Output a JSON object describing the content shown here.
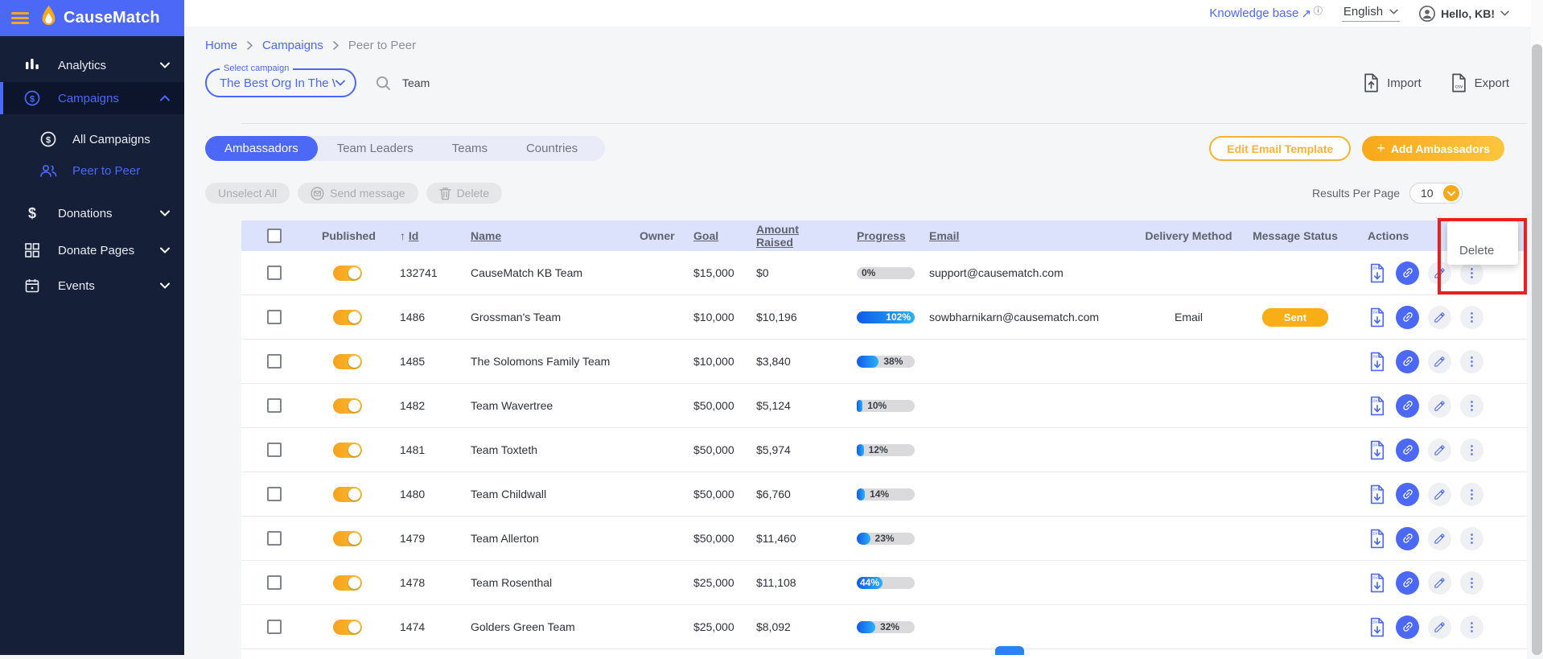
{
  "brand": {
    "name": "CauseMatch"
  },
  "topbar": {
    "knowledge_base": "Knowledge base",
    "external_arrow": "↗",
    "info_glyph": "ⓘ",
    "language": "English",
    "greeting": "Hello, KB!"
  },
  "sidebar": {
    "items": [
      {
        "label": "Analytics"
      },
      {
        "label": "Campaigns"
      },
      {
        "label": "All Campaigns"
      },
      {
        "label": "Peer to Peer"
      },
      {
        "label": "Donations"
      },
      {
        "label": "Donate Pages"
      },
      {
        "label": "Events"
      }
    ]
  },
  "breadcrumb": {
    "items": [
      "Home",
      "Campaigns",
      "Peer to Peer"
    ]
  },
  "filters": {
    "select_label": "Select campaign",
    "select_value": "The Best Org In The W...",
    "search_value": "Team"
  },
  "io": {
    "import_label": "Import",
    "export_label": "Export"
  },
  "tabs": {
    "items": [
      "Ambassadors",
      "Team Leaders",
      "Teams",
      "Countries"
    ],
    "active": "Ambassadors"
  },
  "header_actions": {
    "edit_email_template": "Edit Email Template",
    "plus": "+",
    "add_ambassadors": "Add Ambassadors"
  },
  "bulk_actions": {
    "unselect_all": "Unselect All",
    "send_message": "Send message",
    "delete": "Delete"
  },
  "pagination": {
    "results_per_page_label": "Results Per Page",
    "value": "10"
  },
  "table": {
    "columns": [
      {
        "label": "Published",
        "underline": false
      },
      {
        "label": "Id",
        "underline": true,
        "sort": "↑"
      },
      {
        "label": "Name",
        "underline": true
      },
      {
        "label": "Owner",
        "underline": false
      },
      {
        "label": "Goal",
        "underline": true
      },
      {
        "label": "Amount Raised",
        "underline": true
      },
      {
        "label": "Progress",
        "underline": true
      },
      {
        "label": "Email",
        "underline": true
      },
      {
        "label": "Delivery Method",
        "underline": false
      },
      {
        "label": "Message Status",
        "underline": false
      },
      {
        "label": "Actions",
        "underline": false
      }
    ],
    "rows": [
      {
        "published": true,
        "id": "132741",
        "name": "CauseMatch KB Team",
        "owner": "",
        "goal": "$15,000",
        "amount_raised": "$0",
        "progress": {
          "pct": 0,
          "label": "0%",
          "label_pos": "track"
        },
        "email": "support@causematch.com",
        "delivery_method": "",
        "message_status": ""
      },
      {
        "published": true,
        "id": "1486",
        "name": "Grossman's Team",
        "owner": "",
        "goal": "$10,000",
        "amount_raised": "$10,196",
        "progress": {
          "pct": 102,
          "label": "102%",
          "label_pos": "right"
        },
        "email": "sowbharnikarn@causematch.com",
        "delivery_method": "Email",
        "message_status": "Sent"
      },
      {
        "published": true,
        "id": "1485",
        "name": "The Solomons Family Team",
        "owner": "",
        "goal": "$10,000",
        "amount_raised": "$3,840",
        "progress": {
          "pct": 38,
          "label": "38%",
          "label_pos": "after"
        },
        "email": "",
        "delivery_method": "",
        "message_status": ""
      },
      {
        "published": true,
        "id": "1482",
        "name": "Team Wavertree",
        "owner": "",
        "goal": "$50,000",
        "amount_raised": "$5,124",
        "progress": {
          "pct": 10,
          "label": "10%",
          "label_pos": "after"
        },
        "email": "",
        "delivery_method": "",
        "message_status": ""
      },
      {
        "published": true,
        "id": "1481",
        "name": "Team Toxteth",
        "owner": "",
        "goal": "$50,000",
        "amount_raised": "$5,974",
        "progress": {
          "pct": 12,
          "label": "12%",
          "label_pos": "after"
        },
        "email": "",
        "delivery_method": "",
        "message_status": ""
      },
      {
        "published": true,
        "id": "1480",
        "name": "Team Childwall",
        "owner": "",
        "goal": "$50,000",
        "amount_raised": "$6,760",
        "progress": {
          "pct": 14,
          "label": "14%",
          "label_pos": "after"
        },
        "email": "",
        "delivery_method": "",
        "message_status": ""
      },
      {
        "published": true,
        "id": "1479",
        "name": "Team Allerton",
        "owner": "",
        "goal": "$50,000",
        "amount_raised": "$11,460",
        "progress": {
          "pct": 23,
          "label": "23%",
          "label_pos": "after"
        },
        "email": "",
        "delivery_method": "",
        "message_status": ""
      },
      {
        "published": true,
        "id": "1478",
        "name": "Team Rosenthal",
        "owner": "",
        "goal": "$25,000",
        "amount_raised": "$11,108",
        "progress": {
          "pct": 44,
          "label": "44%",
          "label_pos": "left"
        },
        "email": "",
        "delivery_method": "",
        "message_status": ""
      },
      {
        "published": true,
        "id": "1474",
        "name": "Golders Green Team",
        "owner": "",
        "goal": "$25,000",
        "amount_raised": "$8,092",
        "progress": {
          "pct": 32,
          "label": "32%",
          "label_pos": "after"
        },
        "email": "",
        "delivery_method": "",
        "message_status": ""
      }
    ]
  },
  "popup": {
    "menu_item": "Delete"
  },
  "colors": {
    "accent_blue": "#4b68f6",
    "accent_yellow": "#f9b022",
    "status_sent": "#f9ae16",
    "annotation_red": "#e8211d",
    "progress_fill_start": "#0f5be8",
    "progress_fill_end": "#2bb1f8",
    "sidebar_bg": "#151f38",
    "table_header_bg": "#dce2fb"
  }
}
